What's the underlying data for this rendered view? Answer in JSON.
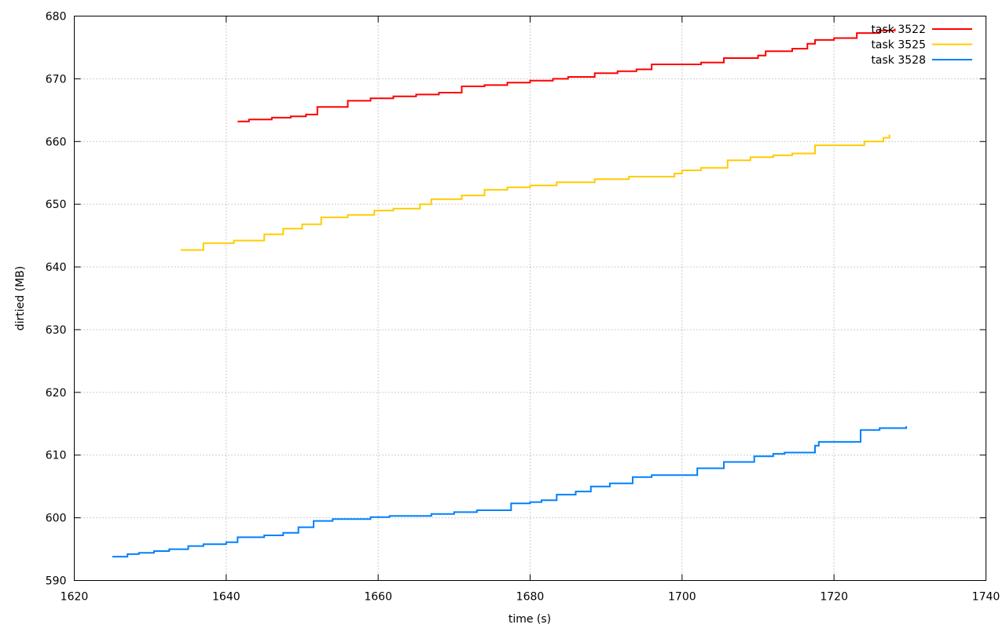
{
  "chart_data": {
    "type": "line",
    "title": "",
    "xlabel": "time (s)",
    "ylabel": "dirtied (MB)",
    "xlim": [
      1620,
      1740
    ],
    "ylim": [
      590,
      680
    ],
    "xticks": [
      1620,
      1640,
      1660,
      1680,
      1700,
      1720,
      1740
    ],
    "yticks": [
      590,
      600,
      610,
      620,
      630,
      640,
      650,
      660,
      670,
      680
    ],
    "grid": true,
    "legend_position": "top-right",
    "step": true,
    "series": [
      {
        "name": "task 3522",
        "color": "#ff0000",
        "points": [
          [
            1641.5,
            663.2
          ],
          [
            1643.0,
            663.5
          ],
          [
            1646.0,
            663.8
          ],
          [
            1648.5,
            664.0
          ],
          [
            1650.5,
            664.3
          ],
          [
            1652.0,
            665.5
          ],
          [
            1656.0,
            666.5
          ],
          [
            1659.0,
            666.9
          ],
          [
            1662.0,
            667.2
          ],
          [
            1665.0,
            667.5
          ],
          [
            1668.0,
            667.8
          ],
          [
            1671.0,
            668.8
          ],
          [
            1674.0,
            669.0
          ],
          [
            1677.0,
            669.4
          ],
          [
            1680.0,
            669.7
          ],
          [
            1683.0,
            670.0
          ],
          [
            1685.0,
            670.3
          ],
          [
            1688.5,
            670.9
          ],
          [
            1691.5,
            671.2
          ],
          [
            1694.0,
            671.5
          ],
          [
            1696.0,
            672.3
          ],
          [
            1702.5,
            672.6
          ],
          [
            1705.5,
            673.3
          ],
          [
            1710.0,
            673.7
          ],
          [
            1711.0,
            674.4
          ],
          [
            1714.5,
            674.8
          ],
          [
            1716.5,
            675.6
          ],
          [
            1717.5,
            676.2
          ],
          [
            1720.0,
            676.5
          ],
          [
            1723.0,
            677.3
          ],
          [
            1726.0,
            677.7
          ],
          [
            1728.0,
            678.0
          ]
        ]
      },
      {
        "name": "task 3525",
        "color": "#ffcc00",
        "points": [
          [
            1634.0,
            642.7
          ],
          [
            1637.0,
            643.8
          ],
          [
            1641.0,
            644.2
          ],
          [
            1645.0,
            645.2
          ],
          [
            1647.5,
            646.1
          ],
          [
            1650.0,
            646.8
          ],
          [
            1652.5,
            647.9
          ],
          [
            1656.0,
            648.3
          ],
          [
            1659.5,
            649.0
          ],
          [
            1662.0,
            649.3
          ],
          [
            1665.5,
            650.0
          ],
          [
            1667.0,
            650.8
          ],
          [
            1671.0,
            651.4
          ],
          [
            1674.0,
            652.3
          ],
          [
            1677.0,
            652.7
          ],
          [
            1680.0,
            653.0
          ],
          [
            1683.5,
            653.5
          ],
          [
            1688.5,
            654.0
          ],
          [
            1693.0,
            654.4
          ],
          [
            1699.0,
            654.9
          ],
          [
            1700.0,
            655.4
          ],
          [
            1702.5,
            655.8
          ],
          [
            1706.0,
            657.0
          ],
          [
            1709.0,
            657.5
          ],
          [
            1712.0,
            657.8
          ],
          [
            1714.5,
            658.1
          ],
          [
            1717.5,
            659.4
          ],
          [
            1724.0,
            660.0
          ],
          [
            1726.5,
            660.6
          ],
          [
            1727.3,
            661.1
          ]
        ]
      },
      {
        "name": "task 3528",
        "color": "#0080ff",
        "points": [
          [
            1625.0,
            593.8
          ],
          [
            1627.0,
            594.2
          ],
          [
            1628.5,
            594.4
          ],
          [
            1630.5,
            594.7
          ],
          [
            1632.5,
            595.0
          ],
          [
            1635.0,
            595.5
          ],
          [
            1637.0,
            595.8
          ],
          [
            1640.0,
            596.1
          ],
          [
            1641.5,
            596.9
          ],
          [
            1645.0,
            597.2
          ],
          [
            1647.5,
            597.6
          ],
          [
            1649.5,
            598.5
          ],
          [
            1651.5,
            599.5
          ],
          [
            1654.0,
            599.8
          ],
          [
            1659.0,
            600.1
          ],
          [
            1661.5,
            600.3
          ],
          [
            1667.0,
            600.6
          ],
          [
            1670.0,
            600.9
          ],
          [
            1673.0,
            601.2
          ],
          [
            1677.5,
            602.3
          ],
          [
            1680.0,
            602.5
          ],
          [
            1681.5,
            602.8
          ],
          [
            1683.5,
            603.7
          ],
          [
            1686.0,
            604.2
          ],
          [
            1688.0,
            605.0
          ],
          [
            1690.5,
            605.5
          ],
          [
            1693.5,
            606.5
          ],
          [
            1696.0,
            606.8
          ],
          [
            1702.0,
            607.9
          ],
          [
            1705.5,
            608.9
          ],
          [
            1709.5,
            609.8
          ],
          [
            1712.0,
            610.2
          ],
          [
            1713.5,
            610.4
          ],
          [
            1717.5,
            611.5
          ],
          [
            1718.0,
            612.1
          ],
          [
            1723.5,
            614.0
          ],
          [
            1726.0,
            614.3
          ],
          [
            1729.5,
            614.6
          ]
        ]
      }
    ]
  }
}
